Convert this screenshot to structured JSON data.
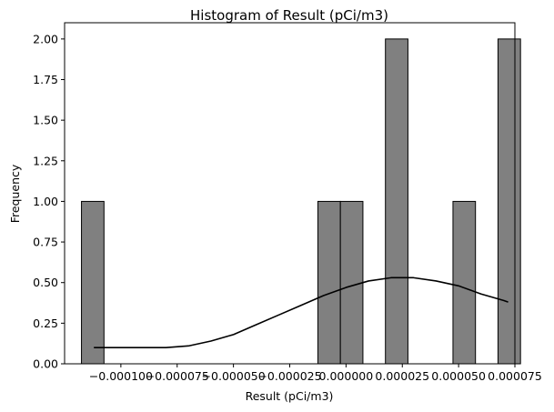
{
  "chart_data": {
    "type": "bar",
    "title": "Histogram of Result (pCi/m3)",
    "xlabel": "Result (pCi/m3)",
    "ylabel": "Frequency",
    "xlim": [
      -0.000125,
      7.5e-05
    ],
    "ylim": [
      0,
      2.1
    ],
    "xticks": [
      -0.0001,
      -7.5e-05,
      -5e-05,
      -2.5e-05,
      0.0,
      2.5e-05,
      5e-05,
      7.5e-05
    ],
    "xtick_labels": [
      "−0.000100",
      "−0.000075",
      "−0.000050",
      "−0.000025",
      "0.000000",
      "0.000025",
      "0.000050",
      "0.000075"
    ],
    "yticks": [
      0,
      0.25,
      0.5,
      0.75,
      1.0,
      1.25,
      1.5,
      1.75,
      2.0
    ],
    "ytick_labels": [
      "0.00",
      "0.25",
      "0.50",
      "0.75",
      "1.00",
      "1.25",
      "1.50",
      "1.75",
      "2.00"
    ],
    "bins": [
      {
        "x0": -0.0001175,
        "x1": -0.0001075,
        "count": 1
      },
      {
        "x0": -1.25e-05,
        "x1": -2.5e-06,
        "count": 1
      },
      {
        "x0": -2.5e-06,
        "x1": 7.5e-06,
        "count": 1
      },
      {
        "x0": 1.75e-05,
        "x1": 2.75e-05,
        "count": 2
      },
      {
        "x0": 4.75e-05,
        "x1": 5.75e-05,
        "count": 1
      },
      {
        "x0": 6.75e-05,
        "x1": 7.75e-05,
        "count": 2
      }
    ],
    "kde": {
      "x": [
        -0.000112,
        -0.0001,
        -9e-05,
        -8e-05,
        -7e-05,
        -6e-05,
        -5e-05,
        -4e-05,
        -3e-05,
        -2e-05,
        -1e-05,
        0.0,
        1e-05,
        2e-05,
        3e-05,
        4e-05,
        5e-05,
        6e-05,
        7e-05,
        7.2e-05
      ],
      "y": [
        0.1,
        0.1,
        0.1,
        0.1,
        0.11,
        0.14,
        0.18,
        0.24,
        0.3,
        0.36,
        0.42,
        0.47,
        0.51,
        0.53,
        0.53,
        0.51,
        0.48,
        0.43,
        0.39,
        0.38
      ]
    },
    "bar_color": "#808080",
    "bar_edge_color": "#000000",
    "line_color": "#000000",
    "grid": false,
    "legend": "none"
  }
}
